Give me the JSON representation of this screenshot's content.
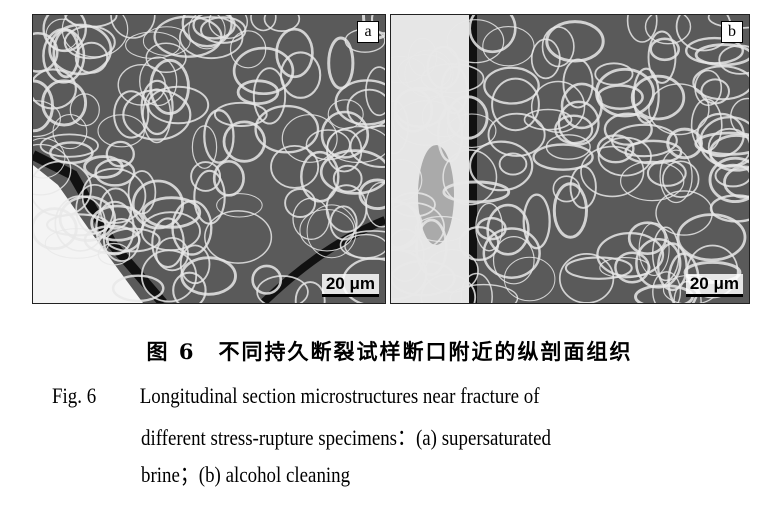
{
  "panels": [
    {
      "label": "a",
      "scale_bar": "20 μm"
    },
    {
      "label": "b",
      "scale_bar": "20 μm"
    }
  ],
  "caption": {
    "cn": "图 6　不同持久断裂试样断口附近的纵剖面组织",
    "fig_label": "Fig. 6",
    "en_line1": "Longitudinal section microstructures near fracture of",
    "en_line2": "different stress-rupture specimens：(a) supersaturated",
    "en_line3": "brine；(b) alcohol cleaning"
  }
}
